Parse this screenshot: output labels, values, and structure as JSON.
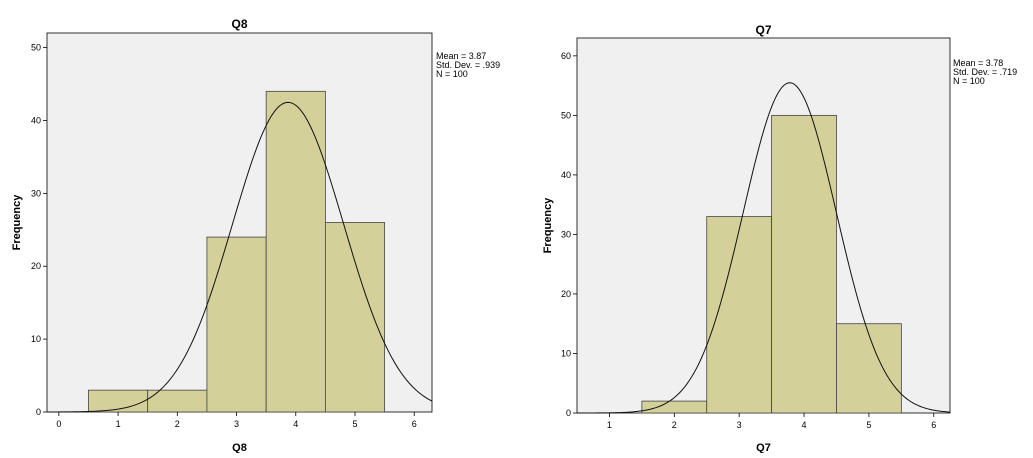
{
  "chart_data": [
    {
      "type": "bar",
      "title": "Q8",
      "xlabel": "Q8",
      "ylabel": "Frequency",
      "x": [
        1,
        2,
        3,
        4,
        5
      ],
      "values": [
        3,
        3,
        24,
        44,
        26
      ],
      "xlim": [
        -0.2,
        6.3
      ],
      "ylim": [
        0,
        52
      ],
      "xticks": [
        "0",
        "1",
        "2",
        "3",
        "4",
        "5",
        "6"
      ],
      "yticks": [
        "0",
        "10",
        "20",
        "30",
        "40",
        "50"
      ],
      "normal_curve": {
        "mean": 3.87,
        "sd": 0.939,
        "n": 100
      },
      "stats": [
        "Mean = 3.87",
        "Std. Dev. = .939",
        "N = 100"
      ],
      "colors": {
        "bar": "#d4d09a",
        "plot_bg": "#f0f0f0"
      }
    },
    {
      "type": "bar",
      "title": "Q7",
      "xlabel": "Q7",
      "ylabel": "Frequency",
      "x": [
        2,
        3,
        4,
        5
      ],
      "values": [
        2,
        33,
        50,
        15
      ],
      "xlim": [
        0.5,
        6.25
      ],
      "ylim": [
        0,
        63
      ],
      "xticks": [
        "1",
        "2",
        "3",
        "4",
        "5",
        "6"
      ],
      "yticks": [
        "0",
        "10",
        "20",
        "30",
        "40",
        "50",
        "60"
      ],
      "normal_curve": {
        "mean": 3.78,
        "sd": 0.719,
        "n": 100
      },
      "stats": [
        "Mean = 3.78",
        "Std. Dev. = .719",
        "N = 100"
      ],
      "colors": {
        "bar": "#d4d09a",
        "plot_bg": "#f0f0f0"
      }
    }
  ]
}
